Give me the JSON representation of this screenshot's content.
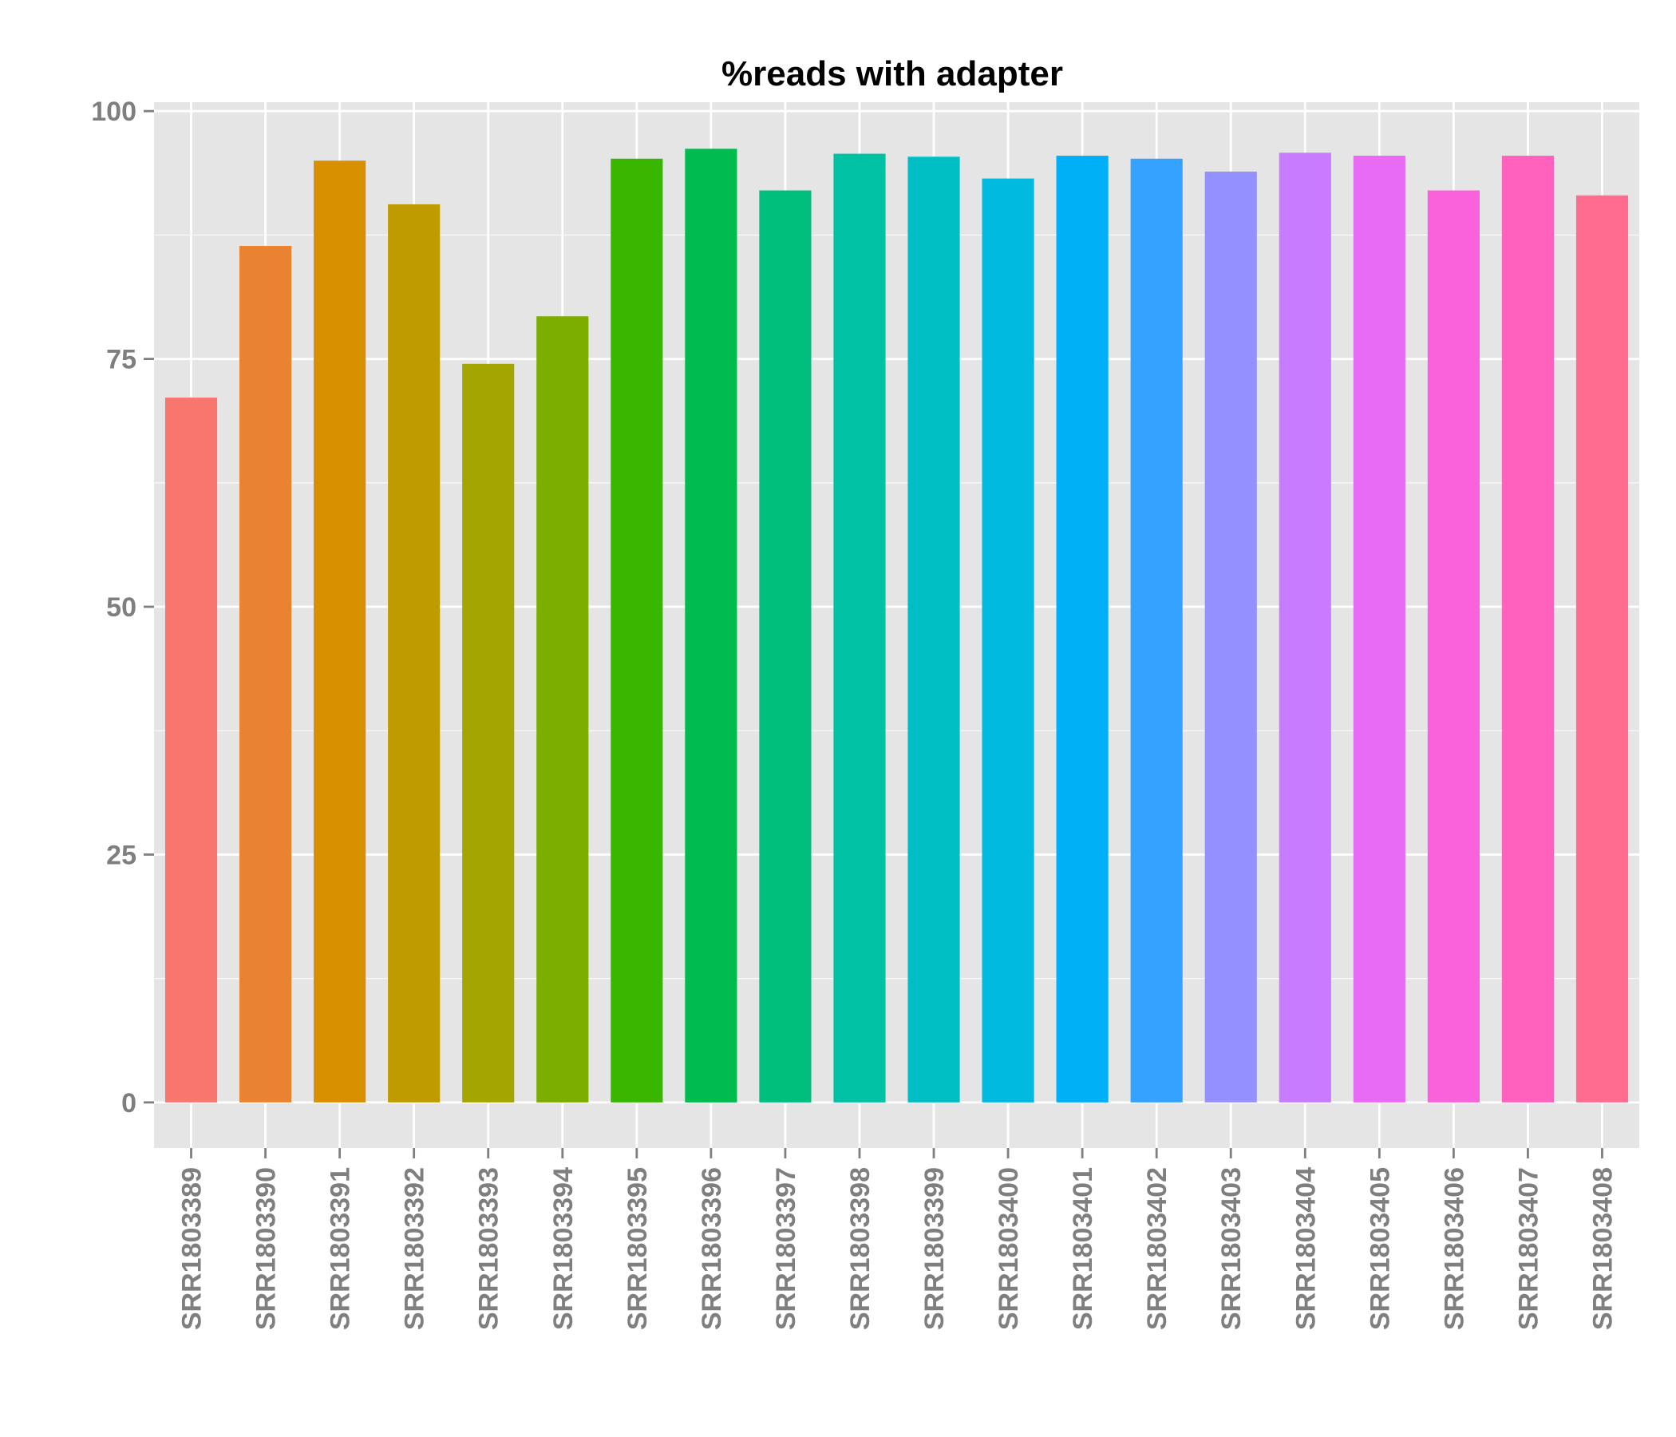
{
  "chart_data": {
    "type": "bar",
    "title": "%reads with adapter",
    "xlabel": "",
    "ylabel": "",
    "ylim": [
      -4.6,
      100.9
    ],
    "yticks": [
      0,
      25,
      50,
      75,
      100
    ],
    "grid": true,
    "categories": [
      "SRR1803389",
      "SRR1803390",
      "SRR1803391",
      "SRR1803392",
      "SRR1803393",
      "SRR1803394",
      "SRR1803395",
      "SRR1803396",
      "SRR1803397",
      "SRR1803398",
      "SRR1803399",
      "SRR1803400",
      "SRR1803401",
      "SRR1803402",
      "SRR1803403",
      "SRR1803404",
      "SRR1803405",
      "SRR1803406",
      "SRR1803407",
      "SRR1803408"
    ],
    "values": [
      71.1,
      86.4,
      95.0,
      90.6,
      74.5,
      79.3,
      95.2,
      96.2,
      92.0,
      95.7,
      95.4,
      93.2,
      95.5,
      95.2,
      93.9,
      95.8,
      95.5,
      92.0,
      95.5,
      91.5
    ],
    "colors": [
      "#F8766D",
      "#EA8331",
      "#D89000",
      "#C09B00",
      "#A3A500",
      "#7CAE00",
      "#39B600",
      "#00BB4E",
      "#00BF7D",
      "#00C1A3",
      "#00BFC4",
      "#00BAE0",
      "#00B0F6",
      "#35A2FF",
      "#9590FF",
      "#C77CFF",
      "#E76BF3",
      "#FA62DB",
      "#FF62BC",
      "#FF6C90"
    ],
    "panel_color": "#E5E5E5",
    "grid_color": "#FFFFFF"
  }
}
